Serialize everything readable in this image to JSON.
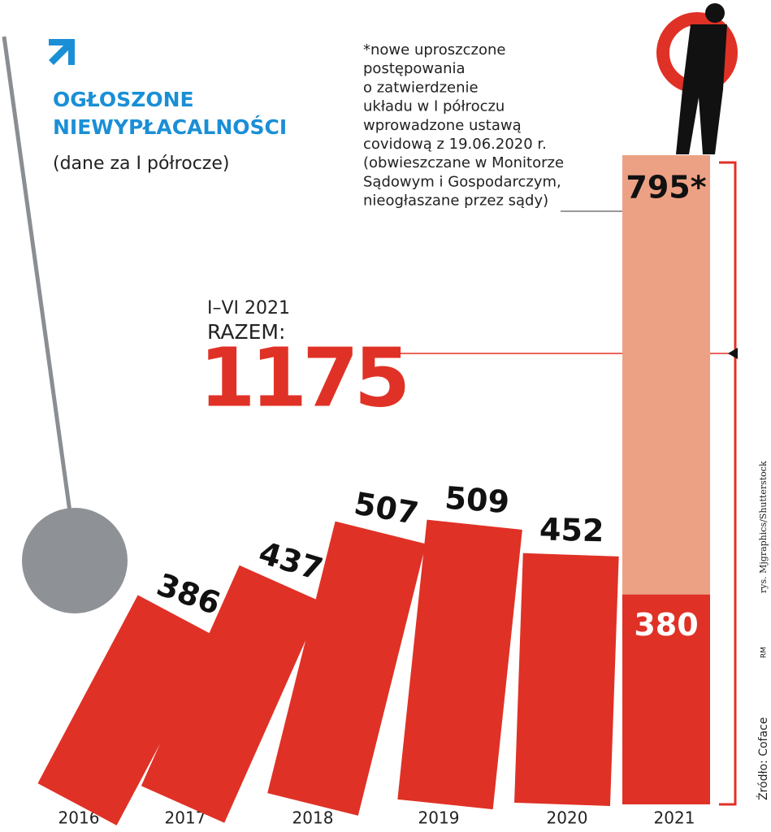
{
  "chart_data": {
    "type": "bar",
    "title": [
      "OGŁOSZONE",
      "NIEWYPŁACALNOŚCI"
    ],
    "subtitle": "(dane za I półrocze)",
    "categories": [
      "2016",
      "2017",
      "2018",
      "2019",
      "2020",
      "2021"
    ],
    "stacked": true,
    "series": [
      {
        "color": "#e03126",
        "values": [
          386,
          437,
          507,
          509,
          452,
          380
        ]
      },
      {
        "color": "#eda184",
        "values": [
          null,
          null,
          null,
          null,
          null,
          795
        ],
        "value_labels": [
          null,
          null,
          null,
          null,
          null,
          "795*"
        ]
      }
    ],
    "total": {
      "label": [
        "I–VI 2021",
        "RAZEM:"
      ],
      "value": 1175
    },
    "note": [
      "*nowe uproszczone",
      "postępowania",
      "o zatwierdzenie",
      "układu w I półroczu",
      "wprowadzone ustawą",
      "covidową z 19.06.2020 r.",
      "(obwieszczane w Monitorze",
      "Sądowym i Gospodarczym,",
      "nieogłaszane przez sądy)"
    ],
    "source": "Źródło: Coface",
    "credit": "rys. Mjgraphics/Shutterstock",
    "author": "RM"
  }
}
